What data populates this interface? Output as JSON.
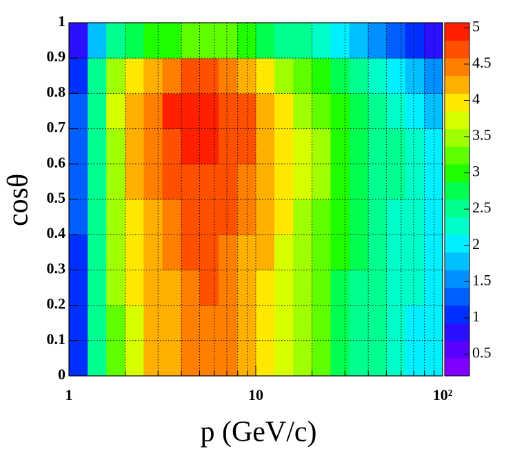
{
  "chart_data": {
    "type": "heatmap",
    "xlabel": "p (GeV/c)",
    "ylabel": "cosθ",
    "xscale": "log",
    "xlim": [
      1,
      100
    ],
    "ylim": [
      0,
      1
    ],
    "xticks": [
      1,
      10,
      {
        "value": 100,
        "label": "10²"
      }
    ],
    "xminor": [
      2,
      3,
      4,
      5,
      6,
      7,
      8,
      9,
      20,
      30,
      40,
      50,
      60,
      70,
      80,
      90
    ],
    "yticks": [
      0,
      0.1,
      0.2,
      0.3,
      0.4,
      0.5,
      0.6,
      0.7,
      0.8,
      0.9,
      1
    ],
    "grid": true,
    "xbins": [
      1,
      1.259,
      1.585,
      1.995,
      2.512,
      3.162,
      3.981,
      5.012,
      6.31,
      7.943,
      10,
      12.59,
      15.85,
      19.95,
      25.12,
      31.62,
      39.81,
      50.12,
      63.1,
      79.43,
      100
    ],
    "ybins": [
      0,
      0.1,
      0.2,
      0.3,
      0.4,
      0.5,
      0.6,
      0.7,
      0.8,
      0.9,
      1
    ],
    "z": [
      [
        1.1,
        2.4,
        3.3,
        3.8,
        4.1,
        4.3,
        4.5,
        4.5,
        4.4,
        4.2,
        4.0,
        3.7,
        3.4,
        3.2,
        2.8,
        2.6,
        2.4,
        2.2,
        2.1,
        2.0
      ],
      [
        1.1,
        2.4,
        3.3,
        3.8,
        4.1,
        4.3,
        4.5,
        4.5,
        4.4,
        4.2,
        4.0,
        3.7,
        3.4,
        3.2,
        2.8,
        2.6,
        2.4,
        2.2,
        2.1,
        2.0
      ],
      [
        1.1,
        2.4,
        3.4,
        3.9,
        4.1,
        4.3,
        4.5,
        4.6,
        4.4,
        4.2,
        4.0,
        3.8,
        3.5,
        3.2,
        2.8,
        2.6,
        2.4,
        2.3,
        2.2,
        2.0
      ],
      [
        1.1,
        2.5,
        3.4,
        3.9,
        4.2,
        4.4,
        4.6,
        4.6,
        4.5,
        4.3,
        4.1,
        3.8,
        3.5,
        3.2,
        2.9,
        2.7,
        2.5,
        2.3,
        2.2,
        2.0
      ],
      [
        1.2,
        2.5,
        3.5,
        4.0,
        4.3,
        4.5,
        4.7,
        4.7,
        4.6,
        4.4,
        4.2,
        3.9,
        3.6,
        3.3,
        2.9,
        2.7,
        2.5,
        2.3,
        2.2,
        2.0
      ],
      [
        1.2,
        2.6,
        3.6,
        4.1,
        4.4,
        4.6,
        4.8,
        4.8,
        4.7,
        4.5,
        4.3,
        4.0,
        3.7,
        3.4,
        3.0,
        2.8,
        2.6,
        2.4,
        2.3,
        2.1
      ],
      [
        1.2,
        2.6,
        3.6,
        4.1,
        4.4,
        4.8,
        4.9,
        4.9,
        4.8,
        4.6,
        4.3,
        4.0,
        3.7,
        3.4,
        3.0,
        2.8,
        2.6,
        2.4,
        2.2,
        2.0
      ],
      [
        1.2,
        2.6,
        3.7,
        4.2,
        4.5,
        4.9,
        5.0,
        5.0,
        4.8,
        4.6,
        4.3,
        4.0,
        3.6,
        3.3,
        2.9,
        2.7,
        2.5,
        2.3,
        2.1,
        1.9
      ],
      [
        1.1,
        2.4,
        3.4,
        3.9,
        4.2,
        4.4,
        4.6,
        4.6,
        4.4,
        4.2,
        3.9,
        3.6,
        3.3,
        3.0,
        2.7,
        2.5,
        2.2,
        2.0,
        1.8,
        1.6
      ],
      [
        0.8,
        1.7,
        2.4,
        2.8,
        3.0,
        3.1,
        3.3,
        3.3,
        3.2,
        3.0,
        2.8,
        2.6,
        2.4,
        2.2,
        2.0,
        1.8,
        1.5,
        1.3,
        1.1,
        0.9
      ]
    ],
    "zlim": [
      0.2,
      5.07
    ],
    "zticks": [
      0.5,
      1,
      1.5,
      2,
      2.5,
      3,
      3.5,
      4,
      4.5,
      5
    ],
    "palette": [
      "#8000ff",
      "#5a00ff",
      "#2a10ff",
      "#0030ff",
      "#0060ff",
      "#0090ff",
      "#00c0ff",
      "#00f0ff",
      "#00ffc8",
      "#00ff90",
      "#00ff50",
      "#20ff00",
      "#60ff00",
      "#a0ff00",
      "#d8ff00",
      "#ffe800",
      "#ffb000",
      "#ff8000",
      "#ff5000",
      "#ff2000"
    ]
  }
}
